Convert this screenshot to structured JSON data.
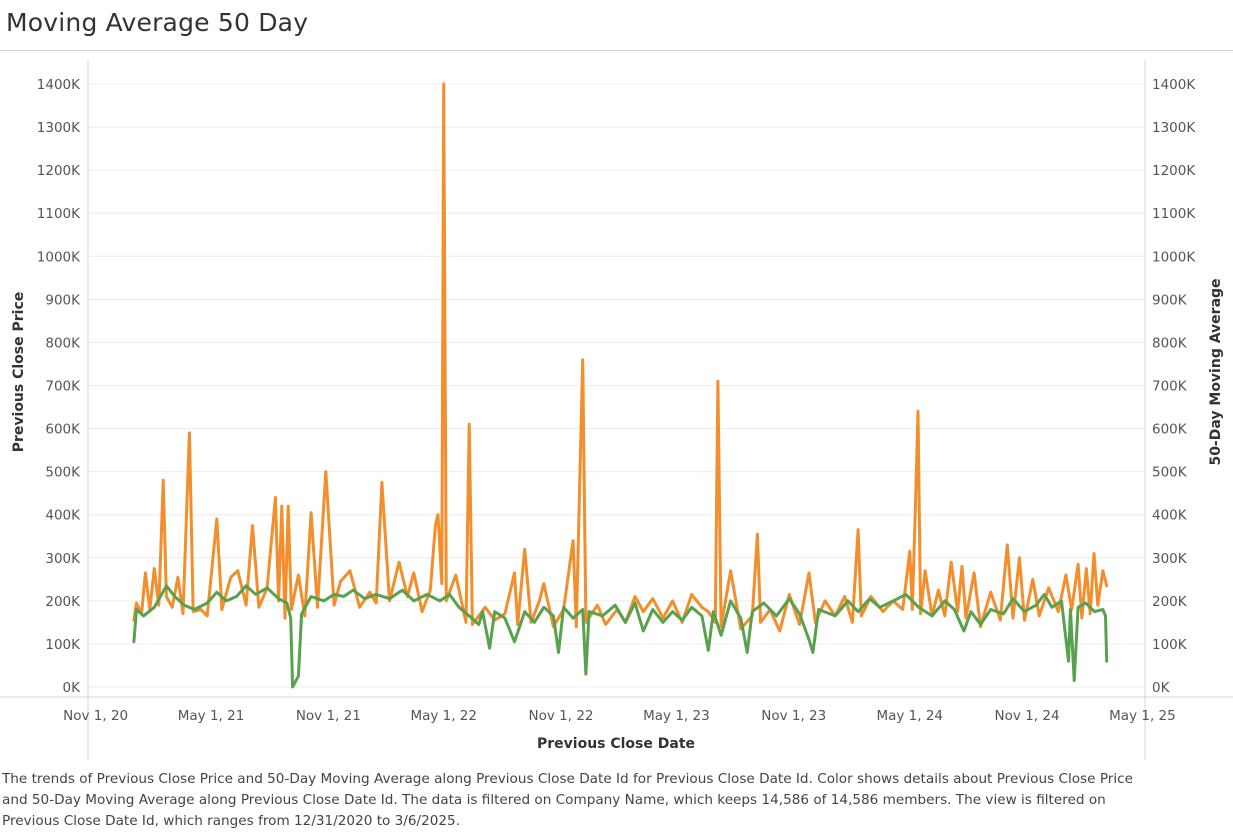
{
  "title": "Moving Average 50 Day",
  "caption": "The trends of Previous Close Price and 50-Day Moving Average along Previous Close Date Id for Previous Close Date Id.  Color shows details about Previous Close Price and 50-Day Moving Average along Previous Close Date Id. The data is filtered on Company Name, which keeps 14,586 of 14,586 members. The view is filtered on Previous Close Date Id, which ranges from 12/31/2020 to 3/6/2025.",
  "colors": {
    "price": "#f28e2b",
    "ma50": "#59a14f",
    "grid": "#ececec",
    "axis": "#d4d4d4"
  },
  "chart_data": {
    "type": "line",
    "xlabel": "Previous Close Date",
    "ylabel_left": "Previous Close Price",
    "ylabel_right": "50-Day Moving Average",
    "x_range": [
      "2020-10-20",
      "2025-05-05"
    ],
    "ylim": [
      0,
      1400
    ],
    "y_unit": "K",
    "y_ticks": [
      "0K",
      "100K",
      "200K",
      "300K",
      "400K",
      "500K",
      "600K",
      "700K",
      "800K",
      "900K",
      "1000K",
      "1100K",
      "1200K",
      "1300K",
      "1400K"
    ],
    "x_ticks": [
      {
        "date": "2020-11-01",
        "label": "Nov 1, 20"
      },
      {
        "date": "2021-05-01",
        "label": "May 1, 21"
      },
      {
        "date": "2021-11-01",
        "label": "Nov 1, 21"
      },
      {
        "date": "2022-05-01",
        "label": "May 1, 22"
      },
      {
        "date": "2022-11-01",
        "label": "Nov 1, 22"
      },
      {
        "date": "2023-05-01",
        "label": "May 1, 23"
      },
      {
        "date": "2023-11-01",
        "label": "Nov 1, 23"
      },
      {
        "date": "2024-05-01",
        "label": "May 1, 24"
      },
      {
        "date": "2024-11-01",
        "label": "Nov 1, 24"
      },
      {
        "date": "2025-05-01",
        "label": "May 1, 25"
      }
    ],
    "grid": true,
    "series": [
      {
        "name": "Previous Close Price",
        "axis": "left",
        "points": [
          [
            "2020-12-31",
            155
          ],
          [
            "2021-01-04",
            195
          ],
          [
            "2021-01-12",
            170
          ],
          [
            "2021-01-18",
            265
          ],
          [
            "2021-01-25",
            180
          ],
          [
            "2021-02-01",
            275
          ],
          [
            "2021-02-08",
            190
          ],
          [
            "2021-02-12",
            350
          ],
          [
            "2021-02-15",
            480
          ],
          [
            "2021-02-20",
            210
          ],
          [
            "2021-03-01",
            185
          ],
          [
            "2021-03-10",
            255
          ],
          [
            "2021-03-18",
            170
          ],
          [
            "2021-03-28",
            590
          ],
          [
            "2021-04-03",
            175
          ],
          [
            "2021-04-15",
            180
          ],
          [
            "2021-04-25",
            165
          ],
          [
            "2021-05-10",
            390
          ],
          [
            "2021-05-18",
            180
          ],
          [
            "2021-06-01",
            255
          ],
          [
            "2021-06-12",
            270
          ],
          [
            "2021-06-25",
            190
          ],
          [
            "2021-07-05",
            375
          ],
          [
            "2021-07-15",
            185
          ],
          [
            "2021-07-28",
            230
          ],
          [
            "2021-08-10",
            440
          ],
          [
            "2021-08-15",
            200
          ],
          [
            "2021-08-20",
            420
          ],
          [
            "2021-08-25",
            160
          ],
          [
            "2021-08-30",
            420
          ],
          [
            "2021-09-04",
            180
          ],
          [
            "2021-09-15",
            260
          ],
          [
            "2021-09-25",
            165
          ],
          [
            "2021-10-05",
            405
          ],
          [
            "2021-10-15",
            185
          ],
          [
            "2021-10-28",
            500
          ],
          [
            "2021-11-10",
            190
          ],
          [
            "2021-11-20",
            245
          ],
          [
            "2021-12-05",
            270
          ],
          [
            "2021-12-20",
            185
          ],
          [
            "2022-01-05",
            220
          ],
          [
            "2022-01-15",
            195
          ],
          [
            "2022-01-24",
            475
          ],
          [
            "2022-02-05",
            200
          ],
          [
            "2022-02-20",
            290
          ],
          [
            "2022-03-05",
            210
          ],
          [
            "2022-03-15",
            265
          ],
          [
            "2022-03-28",
            175
          ],
          [
            "2022-04-10",
            225
          ],
          [
            "2022-04-18",
            375
          ],
          [
            "2022-04-22",
            400
          ],
          [
            "2022-04-28",
            240
          ],
          [
            "2022-05-01",
            1400
          ],
          [
            "2022-05-05",
            200
          ],
          [
            "2022-05-20",
            260
          ],
          [
            "2022-06-05",
            150
          ],
          [
            "2022-06-10",
            610
          ],
          [
            "2022-06-15",
            145
          ],
          [
            "2022-07-05",
            185
          ],
          [
            "2022-07-20",
            155
          ],
          [
            "2022-08-05",
            170
          ],
          [
            "2022-08-20",
            265
          ],
          [
            "2022-08-25",
            145
          ],
          [
            "2022-09-05",
            320
          ],
          [
            "2022-09-15",
            150
          ],
          [
            "2022-09-28",
            200
          ],
          [
            "2022-10-05",
            240
          ],
          [
            "2022-10-20",
            140
          ],
          [
            "2022-11-05",
            180
          ],
          [
            "2022-11-20",
            340
          ],
          [
            "2022-11-25",
            140
          ],
          [
            "2022-12-05",
            760
          ],
          [
            "2022-12-10",
            150
          ],
          [
            "2022-12-28",
            190
          ],
          [
            "2023-01-10",
            145
          ],
          [
            "2023-01-28",
            180
          ],
          [
            "2023-02-10",
            150
          ],
          [
            "2023-02-25",
            210
          ],
          [
            "2023-03-10",
            175
          ],
          [
            "2023-03-25",
            205
          ],
          [
            "2023-04-10",
            160
          ],
          [
            "2023-04-25",
            200
          ],
          [
            "2023-05-10",
            150
          ],
          [
            "2023-05-25",
            215
          ],
          [
            "2023-06-10",
            185
          ],
          [
            "2023-06-20",
            175
          ],
          [
            "2023-07-01",
            150
          ],
          [
            "2023-07-05",
            710
          ],
          [
            "2023-07-10",
            140
          ],
          [
            "2023-07-25",
            270
          ],
          [
            "2023-08-10",
            135
          ],
          [
            "2023-08-28",
            165
          ],
          [
            "2023-09-05",
            355
          ],
          [
            "2023-09-10",
            150
          ],
          [
            "2023-09-25",
            180
          ],
          [
            "2023-10-10",
            130
          ],
          [
            "2023-10-25",
            215
          ],
          [
            "2023-11-10",
            145
          ],
          [
            "2023-11-25",
            265
          ],
          [
            "2023-12-05",
            150
          ],
          [
            "2023-12-20",
            200
          ],
          [
            "2024-01-05",
            165
          ],
          [
            "2024-01-20",
            210
          ],
          [
            "2024-02-01",
            150
          ],
          [
            "2024-02-10",
            365
          ],
          [
            "2024-02-15",
            165
          ],
          [
            "2024-03-01",
            210
          ],
          [
            "2024-03-20",
            175
          ],
          [
            "2024-04-05",
            200
          ],
          [
            "2024-04-20",
            180
          ],
          [
            "2024-05-01",
            315
          ],
          [
            "2024-05-05",
            180
          ],
          [
            "2024-05-10",
            425
          ],
          [
            "2024-05-14",
            640
          ],
          [
            "2024-05-18",
            170
          ],
          [
            "2024-05-25",
            270
          ],
          [
            "2024-06-05",
            165
          ],
          [
            "2024-06-15",
            225
          ],
          [
            "2024-06-25",
            165
          ],
          [
            "2024-07-05",
            290
          ],
          [
            "2024-07-15",
            175
          ],
          [
            "2024-07-22",
            280
          ],
          [
            "2024-07-28",
            160
          ],
          [
            "2024-08-10",
            265
          ],
          [
            "2024-08-20",
            140
          ],
          [
            "2024-09-05",
            220
          ],
          [
            "2024-09-20",
            155
          ],
          [
            "2024-10-01",
            330
          ],
          [
            "2024-10-10",
            160
          ],
          [
            "2024-10-20",
            300
          ],
          [
            "2024-10-28",
            155
          ],
          [
            "2024-11-10",
            250
          ],
          [
            "2024-11-20",
            165
          ],
          [
            "2024-12-05",
            230
          ],
          [
            "2024-12-20",
            175
          ],
          [
            "2025-01-01",
            260
          ],
          [
            "2025-01-10",
            180
          ],
          [
            "2025-01-20",
            285
          ],
          [
            "2025-01-26",
            160
          ],
          [
            "2025-02-02",
            275
          ],
          [
            "2025-02-08",
            170
          ],
          [
            "2025-02-14",
            310
          ],
          [
            "2025-02-20",
            190
          ],
          [
            "2025-02-28",
            270
          ],
          [
            "2025-03-06",
            235
          ]
        ]
      },
      {
        "name": "50-Day Moving Average",
        "axis": "right",
        "points": [
          [
            "2020-12-31",
            105
          ],
          [
            "2021-01-04",
            180
          ],
          [
            "2021-01-15",
            165
          ],
          [
            "2021-02-01",
            185
          ],
          [
            "2021-02-20",
            235
          ],
          [
            "2021-03-05",
            210
          ],
          [
            "2021-03-20",
            190
          ],
          [
            "2021-04-05",
            180
          ],
          [
            "2021-04-25",
            195
          ],
          [
            "2021-05-10",
            220
          ],
          [
            "2021-05-25",
            200
          ],
          [
            "2021-06-10",
            210
          ],
          [
            "2021-06-25",
            235
          ],
          [
            "2021-07-10",
            215
          ],
          [
            "2021-07-28",
            230
          ],
          [
            "2021-08-15",
            205
          ],
          [
            "2021-08-28",
            195
          ],
          [
            "2021-09-03",
            160
          ],
          [
            "2021-09-06",
            0
          ],
          [
            "2021-09-15",
            25
          ],
          [
            "2021-09-20",
            170
          ],
          [
            "2021-10-05",
            210
          ],
          [
            "2021-10-25",
            200
          ],
          [
            "2021-11-10",
            215
          ],
          [
            "2021-11-25",
            210
          ],
          [
            "2021-12-10",
            225
          ],
          [
            "2021-12-28",
            205
          ],
          [
            "2022-01-15",
            215
          ],
          [
            "2022-02-05",
            205
          ],
          [
            "2022-02-25",
            225
          ],
          [
            "2022-03-15",
            200
          ],
          [
            "2022-04-05",
            215
          ],
          [
            "2022-04-25",
            200
          ],
          [
            "2022-05-10",
            215
          ],
          [
            "2022-05-25",
            185
          ],
          [
            "2022-06-10",
            165
          ],
          [
            "2022-06-25",
            145
          ],
          [
            "2022-07-01",
            175
          ],
          [
            "2022-07-12",
            90
          ],
          [
            "2022-07-20",
            175
          ],
          [
            "2022-08-05",
            160
          ],
          [
            "2022-08-20",
            105
          ],
          [
            "2022-09-05",
            175
          ],
          [
            "2022-09-20",
            150
          ],
          [
            "2022-10-05",
            185
          ],
          [
            "2022-10-20",
            165
          ],
          [
            "2022-10-28",
            80
          ],
          [
            "2022-11-05",
            185
          ],
          [
            "2022-11-20",
            160
          ],
          [
            "2022-12-05",
            180
          ],
          [
            "2022-12-10",
            30
          ],
          [
            "2022-12-15",
            175
          ],
          [
            "2023-01-05",
            165
          ],
          [
            "2023-01-25",
            190
          ],
          [
            "2023-02-10",
            150
          ],
          [
            "2023-02-25",
            195
          ],
          [
            "2023-03-10",
            130
          ],
          [
            "2023-03-25",
            180
          ],
          [
            "2023-04-10",
            150
          ],
          [
            "2023-04-25",
            175
          ],
          [
            "2023-05-10",
            155
          ],
          [
            "2023-05-25",
            185
          ],
          [
            "2023-06-10",
            165
          ],
          [
            "2023-06-20",
            85
          ],
          [
            "2023-06-28",
            175
          ],
          [
            "2023-07-10",
            120
          ],
          [
            "2023-07-25",
            200
          ],
          [
            "2023-08-10",
            160
          ],
          [
            "2023-08-20",
            80
          ],
          [
            "2023-08-28",
            175
          ],
          [
            "2023-09-15",
            195
          ],
          [
            "2023-10-05",
            165
          ],
          [
            "2023-10-25",
            205
          ],
          [
            "2023-11-10",
            170
          ],
          [
            "2023-11-25",
            110
          ],
          [
            "2023-12-01",
            80
          ],
          [
            "2023-12-10",
            180
          ],
          [
            "2024-01-05",
            165
          ],
          [
            "2024-01-25",
            200
          ],
          [
            "2024-02-10",
            175
          ],
          [
            "2024-02-28",
            205
          ],
          [
            "2024-03-15",
            185
          ],
          [
            "2024-04-05",
            200
          ],
          [
            "2024-04-25",
            215
          ],
          [
            "2024-05-15",
            185
          ],
          [
            "2024-06-05",
            165
          ],
          [
            "2024-06-25",
            200
          ],
          [
            "2024-07-10",
            180
          ],
          [
            "2024-07-25",
            130
          ],
          [
            "2024-08-05",
            175
          ],
          [
            "2024-08-20",
            145
          ],
          [
            "2024-09-05",
            180
          ],
          [
            "2024-09-25",
            170
          ],
          [
            "2024-10-10",
            205
          ],
          [
            "2024-10-28",
            175
          ],
          [
            "2024-11-15",
            190
          ],
          [
            "2024-11-28",
            215
          ],
          [
            "2024-12-10",
            185
          ],
          [
            "2024-12-25",
            200
          ],
          [
            "2025-01-05",
            60
          ],
          [
            "2025-01-08",
            180
          ],
          [
            "2025-01-14",
            15
          ],
          [
            "2025-01-20",
            185
          ],
          [
            "2025-02-01",
            195
          ],
          [
            "2025-02-15",
            175
          ],
          [
            "2025-02-28",
            180
          ],
          [
            "2025-03-04",
            165
          ],
          [
            "2025-03-06",
            60
          ]
        ]
      }
    ]
  }
}
